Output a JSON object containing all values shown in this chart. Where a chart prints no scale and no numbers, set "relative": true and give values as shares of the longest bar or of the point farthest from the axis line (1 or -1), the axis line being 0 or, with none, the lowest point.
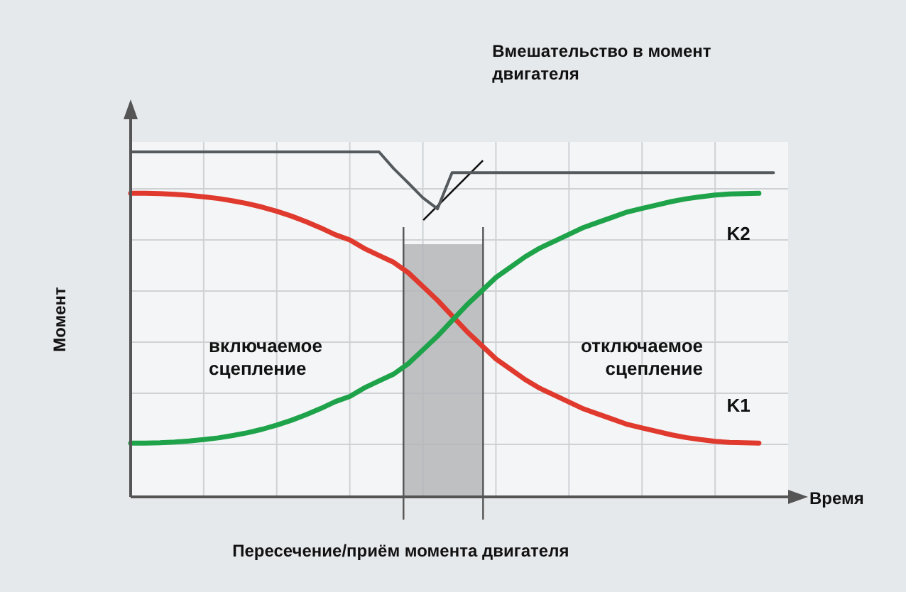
{
  "chart_data": {
    "type": "line",
    "relative": true,
    "xlabel": "Время",
    "ylabel": "Момент",
    "categories": [
      null,
      null,
      null,
      null,
      null,
      null,
      null,
      null,
      null,
      null,
      null,
      null,
      null,
      null,
      null,
      null,
      null,
      null,
      null,
      null,
      null,
      null,
      null,
      null,
      null,
      null,
      null,
      null,
      null,
      null,
      null,
      null,
      null,
      null,
      null,
      null,
      null,
      null,
      null,
      null,
      null,
      null,
      null,
      null,
      null,
      null
    ],
    "grid": true,
    "marker": "none",
    "line_style": "solid",
    "series": [
      {
        "name": "K1",
        "color": "#e03a2e",
        "values": [
          0.88,
          0.88,
          0.879,
          0.877,
          0.874,
          0.87,
          0.865,
          0.858,
          0.85,
          0.84,
          0.828,
          0.814,
          0.798,
          0.78,
          0.76,
          0.745,
          0.72,
          0.7,
          0.68,
          0.65,
          0.61,
          0.57,
          0.525,
          0.48,
          0.44,
          0.4,
          0.37,
          0.34,
          0.315,
          0.295,
          0.275,
          0.255,
          0.24,
          0.225,
          0.21,
          0.2,
          0.19,
          0.18,
          0.172,
          0.166,
          0.161,
          0.158,
          0.157,
          0.156,
          null,
          null
        ]
      },
      {
        "name": "K2",
        "color": "#1fa34a",
        "values": [
          0.156,
          0.156,
          0.157,
          0.159,
          0.162,
          0.166,
          0.171,
          0.178,
          0.186,
          0.196,
          0.208,
          0.222,
          0.238,
          0.256,
          0.276,
          0.291,
          0.316,
          0.336,
          0.356,
          0.386,
          0.426,
          0.466,
          0.511,
          0.556,
          0.596,
          0.636,
          0.666,
          0.696,
          0.721,
          0.741,
          0.761,
          0.781,
          0.796,
          0.811,
          0.826,
          0.836,
          0.846,
          0.856,
          0.864,
          0.87,
          0.875,
          0.878,
          0.879,
          0.88,
          null,
          null
        ]
      },
      {
        "color": "#555a5e",
        "values": [
          1,
          1,
          1,
          1,
          1,
          1,
          1,
          1,
          1,
          1,
          1,
          1,
          1,
          1,
          1,
          1,
          1,
          1,
          0.952,
          0.91,
          0.867,
          0.835,
          0.94,
          0.94,
          0.94,
          0.94,
          0.94,
          0.94,
          0.94,
          0.94,
          0.94,
          0.94,
          0.94,
          0.94,
          0.94,
          0.94,
          0.94,
          0.94,
          0.94,
          0.94,
          0.94,
          0.94,
          0.94,
          0.94,
          0.94,
          null
        ]
      }
    ],
    "annotations": [
      "Вмешательство в момент двигателя",
      "включаемое сцепление",
      "отключаемое сцепление",
      "Пересечение/приём момента двигателя"
    ]
  }
}
